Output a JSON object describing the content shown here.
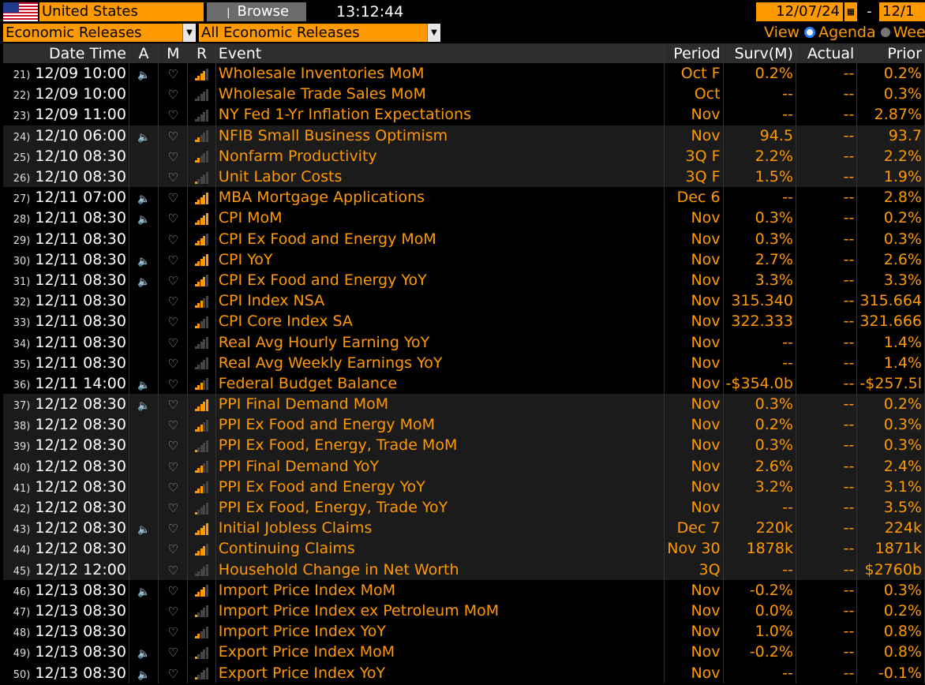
{
  "header": {
    "country": "United States",
    "browse_label": "Browse",
    "clock": "13:12:44",
    "start_date": "12/07/24",
    "end_date_partial": "12/1",
    "dash": "-"
  },
  "filters": {
    "category": "Economic Releases",
    "subcategory": "All Economic Releases",
    "view_label": "View",
    "view_option_agenda": "Agenda",
    "view_option_week": "Wee"
  },
  "columns": {
    "datetime": "Date Time",
    "a": "A",
    "m": "M",
    "r": "R",
    "event": "Event",
    "period": "Period",
    "surv": "Surv(M)",
    "actual": "Actual",
    "prior": "Prior"
  },
  "rows": [
    {
      "num": "21)",
      "dt": "12/09 10:00",
      "spk": true,
      "rel": 4,
      "event": "Wholesale Inventories MoM",
      "period": "Oct F",
      "surv": "0.2%",
      "actual": "--",
      "prior": "0.2%",
      "g": false
    },
    {
      "num": "22)",
      "dt": "12/09 10:00",
      "spk": false,
      "rel": 0,
      "event": "Wholesale Trade Sales MoM",
      "period": "Oct",
      "surv": "--",
      "actual": "--",
      "prior": "0.3%",
      "g": false
    },
    {
      "num": "23)",
      "dt": "12/09 11:00",
      "spk": false,
      "rel": 0,
      "event": "NY Fed 1-Yr Inflation Expectations",
      "period": "Nov",
      "surv": "--",
      "actual": "--",
      "prior": "2.87%",
      "g": false
    },
    {
      "num": "24)",
      "dt": "12/10 06:00",
      "spk": true,
      "rel": 2,
      "event": "NFIB Small Business Optimism",
      "period": "Nov",
      "surv": "94.5",
      "actual": "--",
      "prior": "93.7",
      "g": true
    },
    {
      "num": "25)",
      "dt": "12/10 08:30",
      "spk": false,
      "rel": 2,
      "event": "Nonfarm Productivity",
      "period": "3Q F",
      "surv": "2.2%",
      "actual": "--",
      "prior": "2.2%",
      "g": true
    },
    {
      "num": "26)",
      "dt": "12/10 08:30",
      "spk": false,
      "rel": 1,
      "event": "Unit Labor Costs",
      "period": "3Q F",
      "surv": "1.5%",
      "actual": "--",
      "prior": "1.9%",
      "g": true
    },
    {
      "num": "27)",
      "dt": "12/11 07:00",
      "spk": true,
      "rel": 5,
      "event": "MBA Mortgage Applications",
      "period": "Dec 6",
      "surv": "--",
      "actual": "--",
      "prior": "2.8%",
      "g": false
    },
    {
      "num": "28)",
      "dt": "12/11 08:30",
      "spk": true,
      "rel": 5,
      "event": "CPI MoM",
      "period": "Nov",
      "surv": "0.3%",
      "actual": "--",
      "prior": "0.2%",
      "g": false
    },
    {
      "num": "29)",
      "dt": "12/11 08:30",
      "spk": false,
      "rel": 4,
      "event": "CPI Ex Food and Energy MoM",
      "period": "Nov",
      "surv": "0.3%",
      "actual": "--",
      "prior": "0.3%",
      "g": false
    },
    {
      "num": "30)",
      "dt": "12/11 08:30",
      "spk": true,
      "rel": 5,
      "event": "CPI YoY",
      "period": "Nov",
      "surv": "2.7%",
      "actual": "--",
      "prior": "2.6%",
      "g": false
    },
    {
      "num": "31)",
      "dt": "12/11 08:30",
      "spk": true,
      "rel": 4,
      "event": "CPI Ex Food and Energy YoY",
      "period": "Nov",
      "surv": "3.3%",
      "actual": "--",
      "prior": "3.3%",
      "g": false
    },
    {
      "num": "32)",
      "dt": "12/11 08:30",
      "spk": false,
      "rel": 3,
      "event": "CPI Index NSA",
      "period": "Nov",
      "surv": "315.340",
      "actual": "--",
      "prior": "315.664",
      "g": false
    },
    {
      "num": "33)",
      "dt": "12/11 08:30",
      "spk": false,
      "rel": 2,
      "event": "CPI Core Index SA",
      "period": "Nov",
      "surv": "322.333",
      "actual": "--",
      "prior": "321.666",
      "g": false
    },
    {
      "num": "34)",
      "dt": "12/11 08:30",
      "spk": false,
      "rel": 0,
      "event": "Real Avg Hourly Earning YoY",
      "period": "Nov",
      "surv": "--",
      "actual": "--",
      "prior": "1.4%",
      "g": false
    },
    {
      "num": "35)",
      "dt": "12/11 08:30",
      "spk": false,
      "rel": 0,
      "event": "Real Avg Weekly Earnings YoY",
      "period": "Nov",
      "surv": "--",
      "actual": "--",
      "prior": "1.4%",
      "g": false
    },
    {
      "num": "36)",
      "dt": "12/11 14:00",
      "spk": true,
      "rel": 3,
      "event": "Federal Budget Balance",
      "period": "Nov",
      "surv": "-$354.0b",
      "actual": "--",
      "prior": "-$257.5l",
      "g": false
    },
    {
      "num": "37)",
      "dt": "12/12 08:30",
      "spk": true,
      "rel": 5,
      "event": "PPI Final Demand MoM",
      "period": "Nov",
      "surv": "0.3%",
      "actual": "--",
      "prior": "0.2%",
      "g": true
    },
    {
      "num": "38)",
      "dt": "12/12 08:30",
      "spk": false,
      "rel": 3,
      "event": "PPI Ex Food and Energy MoM",
      "period": "Nov",
      "surv": "0.2%",
      "actual": "--",
      "prior": "0.3%",
      "g": true
    },
    {
      "num": "39)",
      "dt": "12/12 08:30",
      "spk": false,
      "rel": 1,
      "event": "PPI Ex Food, Energy, Trade MoM",
      "period": "Nov",
      "surv": "0.3%",
      "actual": "--",
      "prior": "0.3%",
      "g": true
    },
    {
      "num": "40)",
      "dt": "12/12 08:30",
      "spk": false,
      "rel": 3,
      "event": "PPI Final Demand YoY",
      "period": "Nov",
      "surv": "2.6%",
      "actual": "--",
      "prior": "2.4%",
      "g": true
    },
    {
      "num": "41)",
      "dt": "12/12 08:30",
      "spk": false,
      "rel": 3,
      "event": "PPI Ex Food and Energy YoY",
      "period": "Nov",
      "surv": "3.2%",
      "actual": "--",
      "prior": "3.1%",
      "g": true
    },
    {
      "num": "42)",
      "dt": "12/12 08:30",
      "spk": false,
      "rel": 1,
      "event": "PPI Ex Food, Energy, Trade YoY",
      "period": "Nov",
      "surv": "--",
      "actual": "--",
      "prior": "3.5%",
      "g": true
    },
    {
      "num": "43)",
      "dt": "12/12 08:30",
      "spk": true,
      "rel": 5,
      "event": "Initial Jobless Claims",
      "period": "Dec 7",
      "surv": "220k",
      "actual": "--",
      "prior": "224k",
      "g": true
    },
    {
      "num": "44)",
      "dt": "12/12 08:30",
      "spk": false,
      "rel": 4,
      "event": "Continuing Claims",
      "period": "Nov 30",
      "surv": "1878k",
      "actual": "--",
      "prior": "1871k",
      "g": true
    },
    {
      "num": "45)",
      "dt": "12/12 12:00",
      "spk": false,
      "rel": 0,
      "event": "Household Change in Net Worth",
      "period": "3Q",
      "surv": "--",
      "actual": "--",
      "prior": "$2760b",
      "g": true
    },
    {
      "num": "46)",
      "dt": "12/13 08:30",
      "spk": true,
      "rel": 4,
      "event": "Import Price Index MoM",
      "period": "Nov",
      "surv": "-0.2%",
      "actual": "--",
      "prior": "0.3%",
      "g": false
    },
    {
      "num": "47)",
      "dt": "12/13 08:30",
      "spk": false,
      "rel": 1,
      "event": "Import Price Index ex Petroleum MoM",
      "period": "Nov",
      "surv": "0.0%",
      "actual": "--",
      "prior": "0.2%",
      "g": false
    },
    {
      "num": "48)",
      "dt": "12/13 08:30",
      "spk": false,
      "rel": 2,
      "event": "Import Price Index YoY",
      "period": "Nov",
      "surv": "1.0%",
      "actual": "--",
      "prior": "0.8%",
      "g": false
    },
    {
      "num": "49)",
      "dt": "12/13 08:30",
      "spk": true,
      "rel": 1,
      "event": "Export Price Index MoM",
      "period": "Nov",
      "surv": "-0.2%",
      "actual": "--",
      "prior": "0.8%",
      "g": false
    },
    {
      "num": "50)",
      "dt": "12/13 08:30",
      "spk": true,
      "rel": 1,
      "event": "Export Price Index YoY",
      "period": "Nov",
      "surv": "--",
      "actual": "--",
      "prior": "-0.1%",
      "g": false
    }
  ],
  "colors": {
    "accent": "#ff9900",
    "bar_off": "#444444"
  }
}
